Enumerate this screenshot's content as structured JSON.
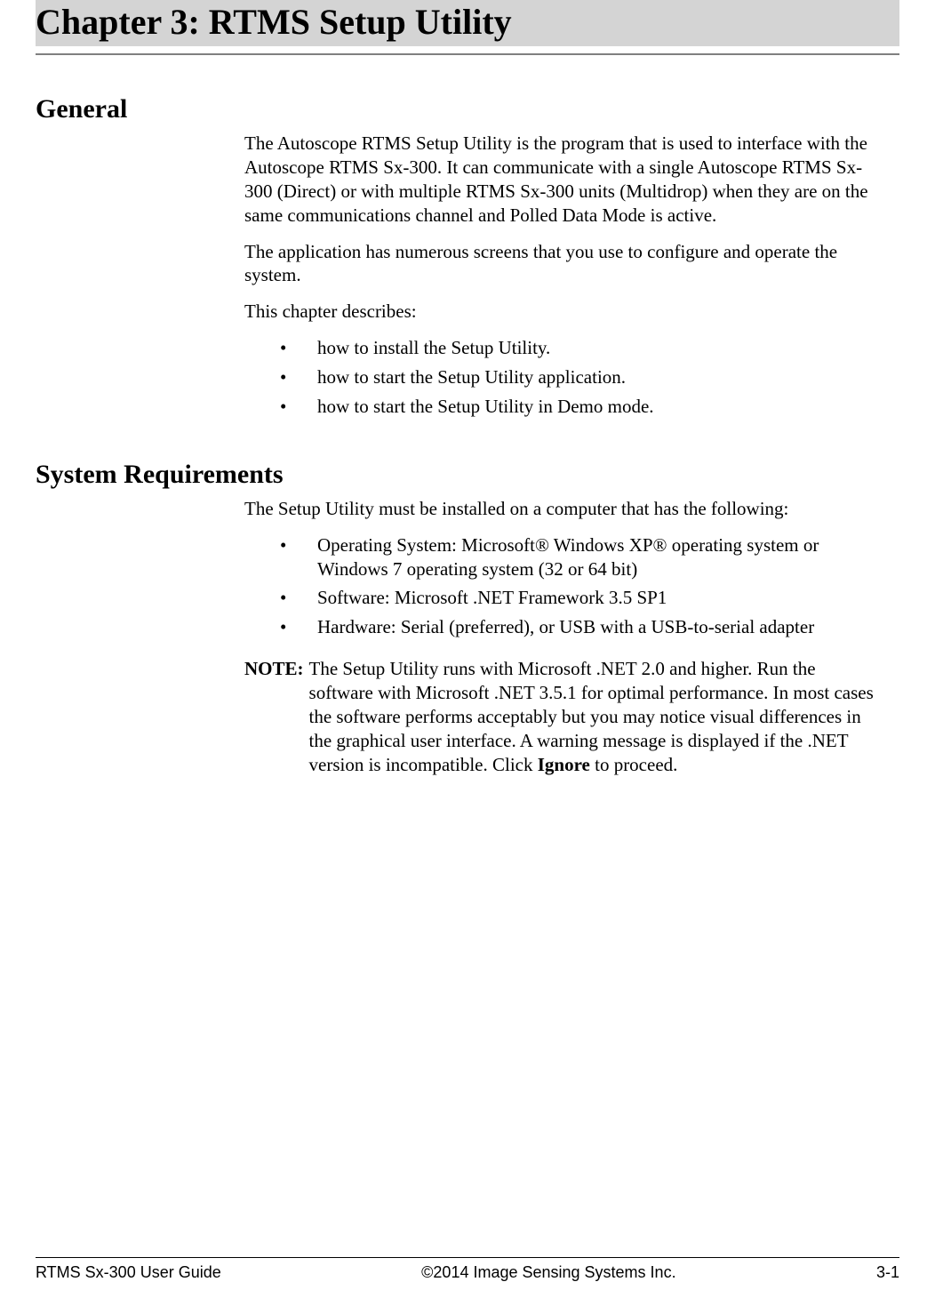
{
  "colors": {
    "page_bg": "#ffffff",
    "title_bar_bg": "#d4d4d4",
    "title_rule": "#808080",
    "text": "#000000",
    "footer_rule": "#000000"
  },
  "typography": {
    "chapter_title_fontsize": 40,
    "section_heading_fontsize": 30,
    "body_fontsize": 21,
    "footer_fontsize": 18,
    "serif_family": "Times New Roman",
    "sans_family": "Arial",
    "serif_display_family": "Georgia"
  },
  "chapter": {
    "title": "Chapter 3:  RTMS Setup Utility"
  },
  "sections": {
    "general": {
      "heading": "General",
      "para1": "The Autoscope RTMS Setup Utility is the program that is used to interface with the Autoscope RTMS Sx-300. It can communicate with a single Autoscope RTMS Sx-300 (Direct) or with multiple RTMS Sx-300 units (Multidrop) when they are on the same communications channel and Polled Data Mode is active.",
      "para2": "The application has numerous screens that you use to configure and operate the system.",
      "para3": "This chapter describes:",
      "bullets": [
        "how to install the Setup Utility.",
        "how to start the Setup Utility application.",
        "how to start the Setup Utility in Demo mode."
      ]
    },
    "sysreq": {
      "heading": "System Requirements",
      "para1": "The Setup Utility must be installed on a computer that has the following:",
      "bullets": [
        "Operating System: Microsoft® Windows XP® operating system or Windows 7 operating system (32 or 64 bit)",
        "Software: Microsoft .NET Framework 3.5 SP1",
        "Hardware: Serial (preferred), or USB with a USB-to-serial adapter"
      ],
      "note_label": "NOTE:",
      "note_text_pre": "The Setup Utility runs with Microsoft .NET 2.0 and higher. Run the software with Microsoft .NET 3.5.1 for optimal performance. In most cases the software performs acceptably but you may notice visual differences in the graphical user interface. A warning message is displayed if the .NET version is incompatible. Click ",
      "note_bold": "Ignore",
      "note_text_post": " to proceed."
    }
  },
  "footer": {
    "left": "RTMS Sx-300 User Guide",
    "center": "©2014 Image Sensing Systems Inc.",
    "right": "3-1"
  }
}
